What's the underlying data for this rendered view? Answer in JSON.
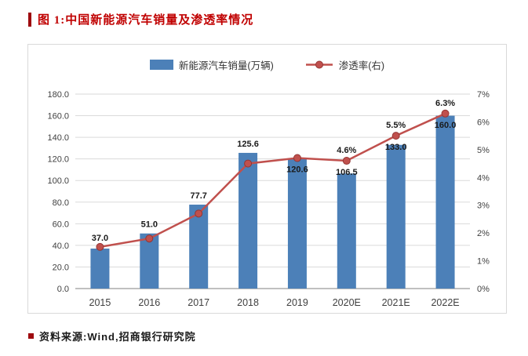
{
  "page": {
    "title": "图 1:中国新能源汽车销量及渗透率情况",
    "source_label": "资料来源:Wind,招商银行研究院",
    "accent_color": "#9E0B0F",
    "title_color": "#C00000"
  },
  "chart_data": {
    "type": "bar",
    "subtype": "bar+line combo, dual axis",
    "categories": [
      "2015",
      "2016",
      "2017",
      "2018",
      "2019",
      "2020E",
      "2021E",
      "2022E"
    ],
    "series": [
      {
        "name": "新能源汽车销量(万辆)",
        "type": "bar",
        "axis": "left",
        "values": [
          37.0,
          51.0,
          77.7,
          125.6,
          120.6,
          106.5,
          133.0,
          160.0
        ],
        "color": "#4C80B8"
      },
      {
        "name": "渗透率(右)",
        "type": "line",
        "axis": "right",
        "values": [
          1.5,
          1.8,
          2.7,
          4.5,
          4.7,
          4.6,
          5.5,
          6.3
        ],
        "color": "#C0504D",
        "marker_stroke": "#943634"
      }
    ],
    "bar_labels": [
      "37.0",
      "51.0",
      "77.7",
      "125.6",
      "120.6",
      "106.5",
      "133.0",
      "160.0"
    ],
    "bar_label_below_marker": [
      false,
      false,
      false,
      false,
      true,
      true,
      true,
      true
    ],
    "rate_labels": [
      "",
      "",
      "",
      "",
      "",
      "4.6%",
      "5.5%",
      "6.3%"
    ],
    "left_axis": {
      "min": 0,
      "max": 180,
      "step": 20,
      "decimals": 1
    },
    "right_axis": {
      "min": 0,
      "max": 7,
      "step": 1,
      "suffix": "%"
    },
    "grid": true,
    "legend_position": "top",
    "grid_color": "#dadada",
    "axis_line_color": "#808080",
    "tick_label_color": "#404040",
    "data_label_color": "#1a1a1a"
  }
}
